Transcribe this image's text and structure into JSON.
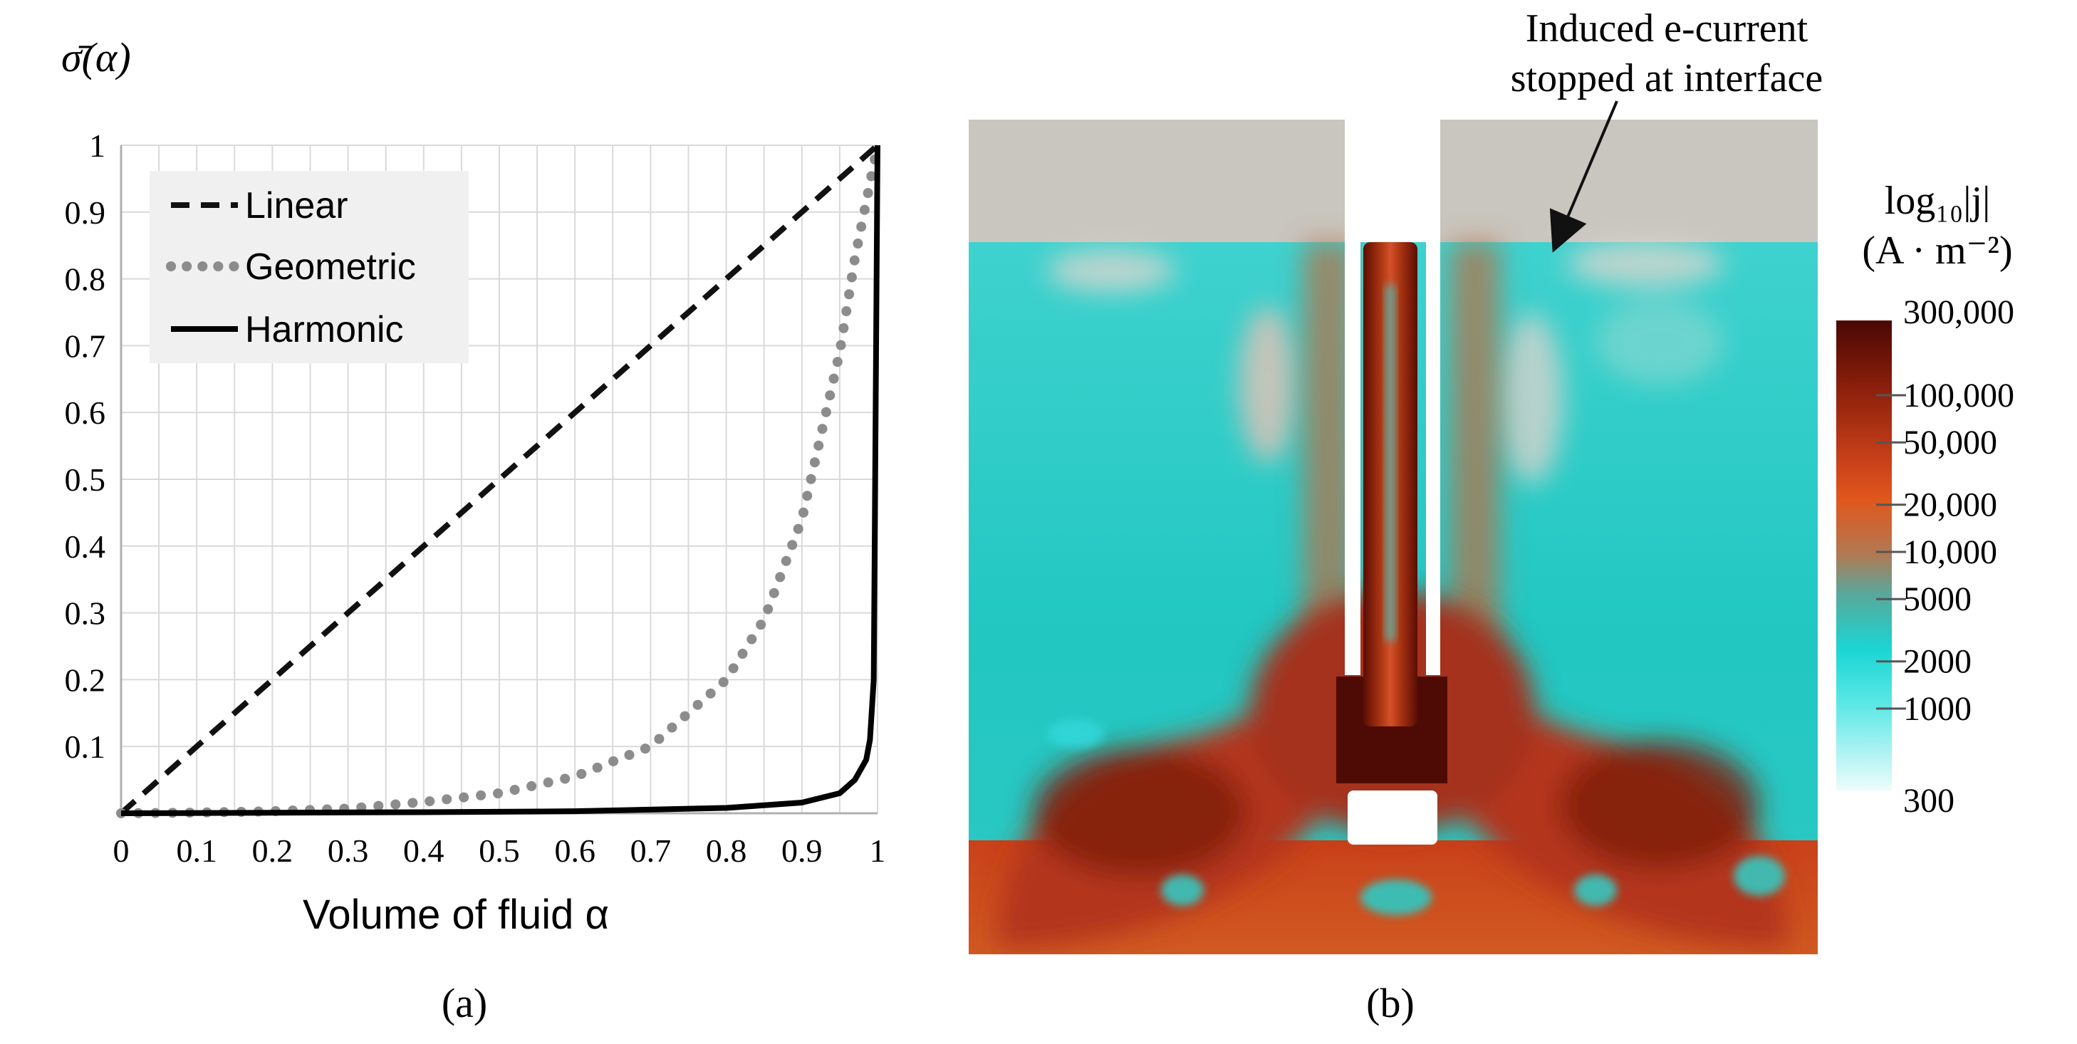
{
  "panel_labels": {
    "a": "(a)",
    "b": "(b)"
  },
  "chart_data": [
    {
      "type": "line",
      "ylabel": "σ̄(α)",
      "xlabel": "Volume of fluid α",
      "xlim": [
        0,
        1
      ],
      "ylim": [
        0,
        1
      ],
      "grid": true,
      "legend_placement": "top-left",
      "x_ticks": [
        "0",
        "0.1",
        "0.2",
        "0.3",
        "0.4",
        "0.5",
        "0.6",
        "0.7",
        "0.8",
        "0.9",
        "1"
      ],
      "y_ticks": [
        "0.1",
        "0.2",
        "0.3",
        "0.4",
        "0.5",
        "0.6",
        "0.7",
        "0.8",
        "0.9",
        "1"
      ],
      "series": [
        {
          "name": "Linear",
          "style": "dashed",
          "color": "#111111",
          "x": [
            0,
            1
          ],
          "y": [
            0,
            1
          ]
        },
        {
          "name": "Geometric",
          "style": "dotted",
          "color": "#8c8c8c",
          "x": [
            0,
            0.1,
            0.2,
            0.3,
            0.4,
            0.5,
            0.6,
            0.7,
            0.8,
            0.85,
            0.9,
            0.95,
            0.97,
            1
          ],
          "y": [
            0.0,
            0.001,
            0.003,
            0.007,
            0.017,
            0.03,
            0.055,
            0.1,
            0.2,
            0.29,
            0.44,
            0.69,
            0.83,
            1
          ]
        },
        {
          "name": "Harmonic",
          "style": "solid",
          "color": "#000000",
          "x": [
            0,
            0.2,
            0.4,
            0.6,
            0.8,
            0.9,
            0.95,
            0.97,
            0.985,
            0.99,
            0.995,
            1
          ],
          "y": [
            0,
            0.0008,
            0.0016,
            0.003,
            0.008,
            0.016,
            0.03,
            0.05,
            0.08,
            0.11,
            0.2,
            1
          ]
        }
      ]
    },
    {
      "type": "heatmap",
      "colorbar": {
        "title_line1": "log₁₀|j|",
        "title_line2": "(A · m⁻²)",
        "scale": "log",
        "range": [
          300,
          300000
        ],
        "tick_labels": [
          "300,000",
          "100,000",
          "50,000",
          "20,000",
          "10,000",
          "5000",
          "2000",
          "1000",
          "300"
        ],
        "tick_values": [
          300000,
          100000,
          50000,
          20000,
          10000,
          5000,
          2000,
          1000,
          300
        ]
      },
      "annotation": {
        "line1": "Induced e-current",
        "line2": "stopped at interface"
      },
      "colors": {
        "gas": "#c9c6bf",
        "low": "#3fd1cc",
        "high": "#c9411a",
        "max": "#5a0d06"
      }
    }
  ]
}
